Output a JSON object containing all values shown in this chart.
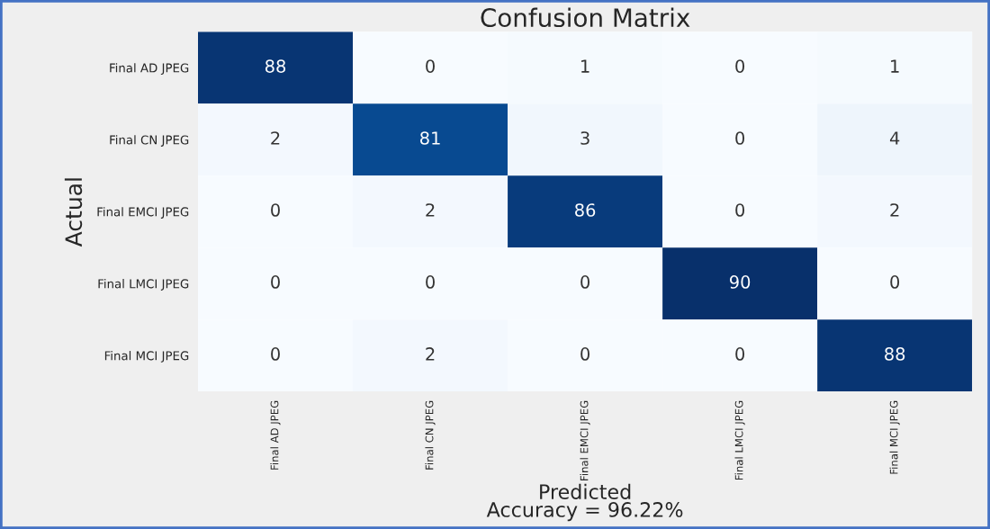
{
  "chart_data": {
    "type": "heatmap",
    "title": "Confusion Matrix",
    "xlabel": "Predicted\nAccuracy = 96.22%",
    "ylabel": "Actual",
    "categories": [
      "Final AD JPEG",
      "Final CN JPEG",
      "Final EMCI JPEG",
      "Final LMCI JPEG",
      "Final MCI JPEG"
    ],
    "y_categories": [
      "Final AD JPEG",
      "Final CN JPEG",
      "Final EMCI JPEG",
      "Final LMCI JPEG",
      "Final MCI JPEG"
    ],
    "cells": [
      [
        88,
        0,
        1,
        0,
        1
      ],
      [
        2,
        81,
        3,
        0,
        4
      ],
      [
        0,
        2,
        86,
        0,
        2
      ],
      [
        0,
        0,
        0,
        90,
        0
      ],
      [
        0,
        2,
        0,
        0,
        88
      ]
    ],
    "data_labels": true
  }
}
